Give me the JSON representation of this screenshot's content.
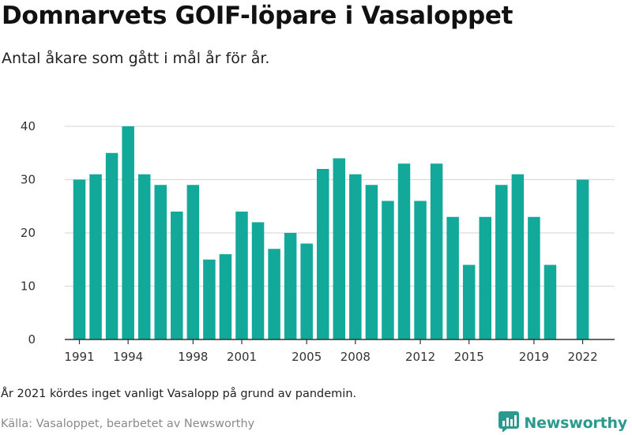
{
  "header": {
    "title": "Domnarvets GOIF-löpare i Vasaloppet",
    "subtitle": "Antal åkare som gått i mål år för år."
  },
  "footer": {
    "note": "År 2021 kördes inget vanligt Vasalopp på grund av pandemin.",
    "source": "Källa: Vasaloppet, bearbetet av Newsworthy",
    "brand": "Newsworthy",
    "brand_icon": "bar-chart-logo-icon"
  },
  "colors": {
    "bar": "#12a89a",
    "grid": "#dcdcdc",
    "brand": "#2a9a8f"
  },
  "chart_data": {
    "type": "bar",
    "x": [
      1991,
      1992,
      1993,
      1994,
      1995,
      1996,
      1997,
      1998,
      1999,
      2000,
      2001,
      2002,
      2003,
      2004,
      2005,
      2006,
      2007,
      2008,
      2009,
      2010,
      2011,
      2012,
      2013,
      2014,
      2015,
      2016,
      2017,
      2018,
      2019,
      2020,
      2021,
      2022
    ],
    "values": [
      30,
      31,
      35,
      40,
      31,
      29,
      24,
      29,
      15,
      16,
      24,
      22,
      17,
      20,
      18,
      32,
      34,
      31,
      29,
      26,
      33,
      26,
      33,
      23,
      14,
      23,
      29,
      31,
      23,
      14,
      null,
      30
    ],
    "xticks": [
      1991,
      1994,
      1998,
      2001,
      2005,
      2008,
      2012,
      2015,
      2019,
      2022
    ],
    "yticks": [
      0,
      10,
      20,
      30,
      40
    ],
    "ylim": [
      0,
      42
    ],
    "xlabel": "",
    "ylabel": "",
    "grid": true
  }
}
